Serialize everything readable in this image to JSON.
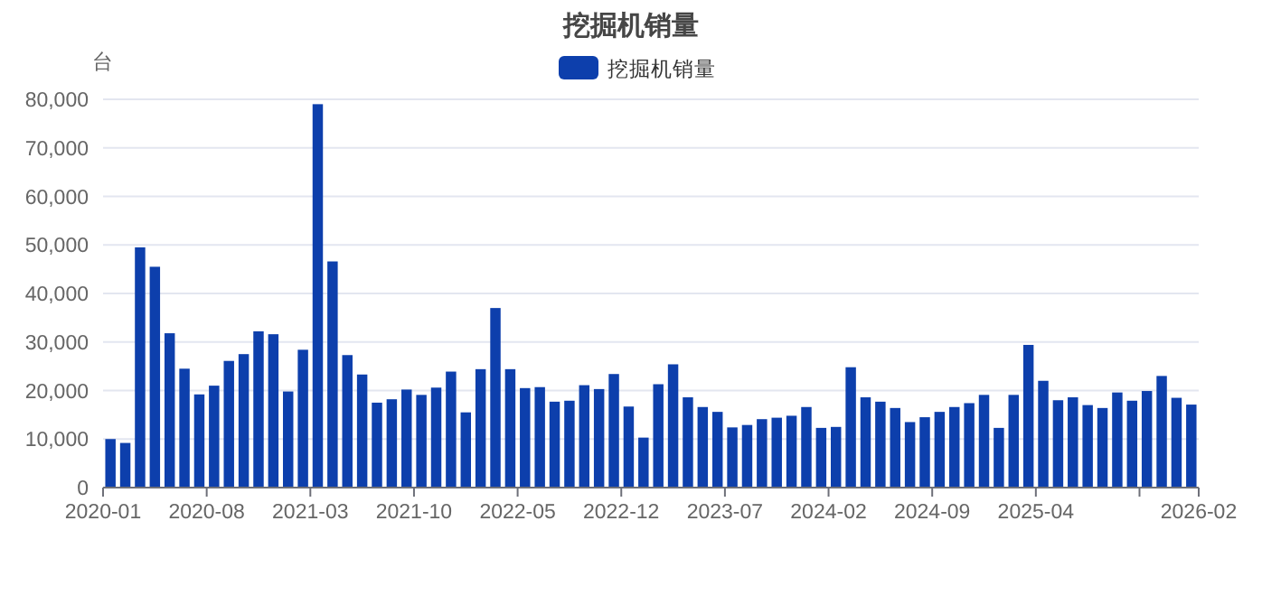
{
  "chart_data": {
    "type": "bar",
    "title": "挖掘机销量",
    "ylabel": "台",
    "categories": [
      "2020-01",
      null,
      null,
      null,
      null,
      null,
      null,
      "2020-08",
      null,
      null,
      null,
      null,
      null,
      null,
      "2021-03",
      null,
      null,
      null,
      null,
      null,
      null,
      "2021-10",
      null,
      null,
      null,
      null,
      null,
      null,
      "2022-05",
      null,
      null,
      null,
      null,
      null,
      null,
      "2022-12",
      null,
      null,
      null,
      null,
      null,
      null,
      "2023-07",
      null,
      null,
      null,
      null,
      null,
      null,
      "2024-02",
      null,
      null,
      null,
      null,
      null,
      null,
      "2024-09",
      null,
      null,
      null,
      null,
      null,
      null,
      "2025-04",
      null,
      null,
      null,
      null,
      null,
      null,
      null,
      null,
      null,
      "2026-02"
    ],
    "series": [
      {
        "name": "挖掘机销量",
        "color": "#0d3fac",
        "values": [
          10000,
          9200,
          49500,
          45500,
          31800,
          24500,
          19200,
          21000,
          26100,
          27500,
          32200,
          31600,
          19800,
          28400,
          79000,
          46600,
          27300,
          23300,
          17500,
          18200,
          20200,
          19100,
          20600,
          23900,
          15500,
          24400,
          37000,
          24400,
          20500,
          20700,
          17700,
          17900,
          21100,
          20300,
          23400,
          16700,
          10300,
          21300,
          25400,
          18600,
          16600,
          15600,
          12400,
          12900,
          14100,
          14400,
          14800,
          16600,
          12300,
          12500,
          24800,
          18600,
          17700,
          16400,
          13500,
          14500,
          15600,
          16600,
          17400,
          19100,
          12300,
          19100,
          29400,
          22000,
          18000,
          18600,
          17000,
          16400,
          19600,
          17900,
          19900,
          23000,
          18500,
          17100
        ]
      }
    ],
    "ylim": [
      0,
      80000
    ],
    "yticks": [
      0,
      {
        "value": 10000,
        "label": "10,000"
      },
      {
        "value": 20000,
        "label": "20,000"
      },
      {
        "value": 30000,
        "label": "30,000"
      },
      {
        "value": 40000,
        "label": "40,000"
      },
      {
        "value": 50000,
        "label": "50,000"
      },
      {
        "value": 60000,
        "label": "60,000"
      },
      {
        "value": 70000,
        "label": "70,000"
      },
      {
        "value": 80000,
        "label": "80,000"
      }
    ],
    "grid": "y",
    "legend": "top"
  }
}
